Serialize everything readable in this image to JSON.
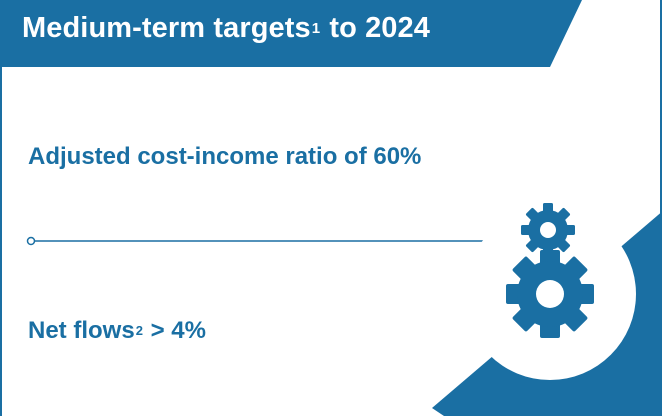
{
  "header": {
    "title_pre": "Medium-term targets",
    "title_footnote": "1",
    "title_post": " to 2024"
  },
  "targets": [
    {
      "text_pre": "Adjusted cost-income ratio of 60%",
      "footnote": "",
      "text_post": ""
    },
    {
      "text_pre": "Net flows",
      "footnote": "2",
      "text_post": " > 4%"
    }
  ],
  "colors": {
    "brand_blue": "#1a6fa3",
    "shadow_gray": "#cfcfcf",
    "background": "#ffffff"
  },
  "icons": [
    "gear-small-icon",
    "gear-large-icon"
  ]
}
